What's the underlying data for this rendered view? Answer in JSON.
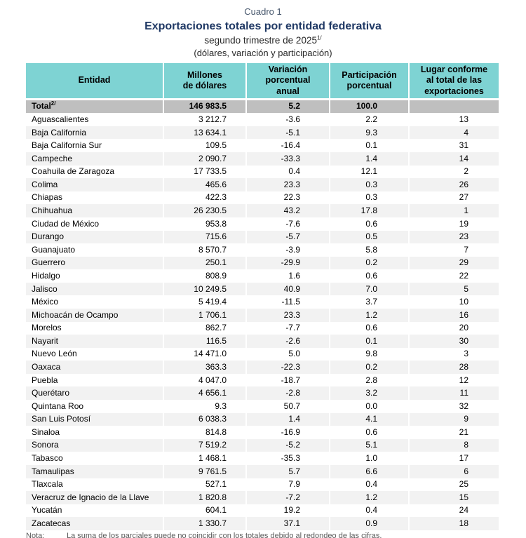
{
  "page": {
    "cuadro_label": "Cuadro 1",
    "title": "Exportaciones totales por entidad federativa",
    "subtitle_period": "segundo trimestre de 2025",
    "subtitle_period_sup": "1/",
    "subtitle_units": "(dólares, variación y participación)"
  },
  "colors": {
    "header_bg": "#7ED3D3",
    "total_row_bg": "#BFBFBF",
    "stripe_bg": "#F2F2F2",
    "title_color": "#1F3864",
    "cuadro_color": "#44546A",
    "note_color": "#595959"
  },
  "table": {
    "columns": [
      {
        "id": "entidad",
        "lines": [
          "Entidad"
        ]
      },
      {
        "id": "millones",
        "lines": [
          "Millones",
          "de dólares"
        ]
      },
      {
        "id": "variacion",
        "lines": [
          "Variación",
          "porcentual",
          "anual"
        ]
      },
      {
        "id": "participacion",
        "lines": [
          "Participación",
          "porcentual"
        ]
      },
      {
        "id": "lugar",
        "lines": [
          "Lugar conforme",
          "al total de las",
          "exportaciones"
        ]
      }
    ],
    "total": {
      "entidad": "Total",
      "entidad_sup": "2/",
      "millones": "146 983.5",
      "variacion": "5.2",
      "participacion": "100.0",
      "lugar": ""
    },
    "rows": [
      {
        "entidad": "Aguascalientes",
        "millones": "3 212.7",
        "variacion": "-3.6",
        "participacion": "2.2",
        "lugar": "13"
      },
      {
        "entidad": "Baja California",
        "millones": "13 634.1",
        "variacion": "-5.1",
        "participacion": "9.3",
        "lugar": "4"
      },
      {
        "entidad": "Baja California Sur",
        "millones": "109.5",
        "variacion": "-16.4",
        "participacion": "0.1",
        "lugar": "31"
      },
      {
        "entidad": "Campeche",
        "millones": "2 090.7",
        "variacion": "-33.3",
        "participacion": "1.4",
        "lugar": "14"
      },
      {
        "entidad": "Coahuila de Zaragoza",
        "millones": "17 733.5",
        "variacion": "0.4",
        "participacion": "12.1",
        "lugar": "2"
      },
      {
        "entidad": "Colima",
        "millones": "465.6",
        "variacion": "23.3",
        "participacion": "0.3",
        "lugar": "26"
      },
      {
        "entidad": "Chiapas",
        "millones": "422.3",
        "variacion": "22.3",
        "participacion": "0.3",
        "lugar": "27"
      },
      {
        "entidad": "Chihuahua",
        "millones": "26 230.5",
        "variacion": "43.2",
        "participacion": "17.8",
        "lugar": "1"
      },
      {
        "entidad": "Ciudad de México",
        "millones": "953.8",
        "variacion": "-7.6",
        "participacion": "0.6",
        "lugar": "19"
      },
      {
        "entidad": "Durango",
        "millones": "715.6",
        "variacion": "-5.7",
        "participacion": "0.5",
        "lugar": "23"
      },
      {
        "entidad": "Guanajuato",
        "millones": "8 570.7",
        "variacion": "-3.9",
        "participacion": "5.8",
        "lugar": "7"
      },
      {
        "entidad": "Guerrero",
        "millones": "250.1",
        "variacion": "-29.9",
        "participacion": "0.2",
        "lugar": "29"
      },
      {
        "entidad": "Hidalgo",
        "millones": "808.9",
        "variacion": "1.6",
        "participacion": "0.6",
        "lugar": "22"
      },
      {
        "entidad": "Jalisco",
        "millones": "10 249.5",
        "variacion": "40.9",
        "participacion": "7.0",
        "lugar": "5"
      },
      {
        "entidad": "México",
        "millones": "5 419.4",
        "variacion": "-11.5",
        "participacion": "3.7",
        "lugar": "10"
      },
      {
        "entidad": "Michoacán de Ocampo",
        "millones": "1 706.1",
        "variacion": "23.3",
        "participacion": "1.2",
        "lugar": "16"
      },
      {
        "entidad": "Morelos",
        "millones": "862.7",
        "variacion": "-7.7",
        "participacion": "0.6",
        "lugar": "20"
      },
      {
        "entidad": "Nayarit",
        "millones": "116.5",
        "variacion": "-2.6",
        "participacion": "0.1",
        "lugar": "30"
      },
      {
        "entidad": "Nuevo León",
        "millones": "14 471.0",
        "variacion": "5.0",
        "participacion": "9.8",
        "lugar": "3"
      },
      {
        "entidad": "Oaxaca",
        "millones": "363.3",
        "variacion": "-22.3",
        "participacion": "0.2",
        "lugar": "28"
      },
      {
        "entidad": "Puebla",
        "millones": "4 047.0",
        "variacion": "-18.7",
        "participacion": "2.8",
        "lugar": "12"
      },
      {
        "entidad": "Querétaro",
        "millones": "4 656.1",
        "variacion": "-2.8",
        "participacion": "3.2",
        "lugar": "11"
      },
      {
        "entidad": "Quintana Roo",
        "millones": "9.3",
        "variacion": "50.7",
        "participacion": "0.0",
        "lugar": "32"
      },
      {
        "entidad": "San Luis Potosí",
        "millones": "6 038.3",
        "variacion": "1.4",
        "participacion": "4.1",
        "lugar": "9"
      },
      {
        "entidad": "Sinaloa",
        "millones": "814.8",
        "variacion": "-16.9",
        "participacion": "0.6",
        "lugar": "21"
      },
      {
        "entidad": "Sonora",
        "millones": "7 519.2",
        "variacion": "-5.2",
        "participacion": "5.1",
        "lugar": "8"
      },
      {
        "entidad": "Tabasco",
        "millones": "1 468.1",
        "variacion": "-35.3",
        "participacion": "1.0",
        "lugar": "17"
      },
      {
        "entidad": "Tamaulipas",
        "millones": "9 761.5",
        "variacion": "5.7",
        "participacion": "6.6",
        "lugar": "6"
      },
      {
        "entidad": "Tlaxcala",
        "millones": "527.1",
        "variacion": "7.9",
        "participacion": "0.4",
        "lugar": "25"
      },
      {
        "entidad": "Veracruz de Ignacio de la Llave",
        "millones": "1 820.8",
        "variacion": "-7.2",
        "participacion": "1.2",
        "lugar": "15"
      },
      {
        "entidad": "Yucatán",
        "millones": "604.1",
        "variacion": "19.2",
        "participacion": "0.4",
        "lugar": "24"
      },
      {
        "entidad": "Zacatecas",
        "millones": "1 330.7",
        "variacion": "37.1",
        "participacion": "0.9",
        "lugar": "18"
      }
    ]
  },
  "note": {
    "label": "Nota:",
    "text": "La suma de los parciales puede no coincidir con los totales debido al redondeo de las cifras."
  }
}
